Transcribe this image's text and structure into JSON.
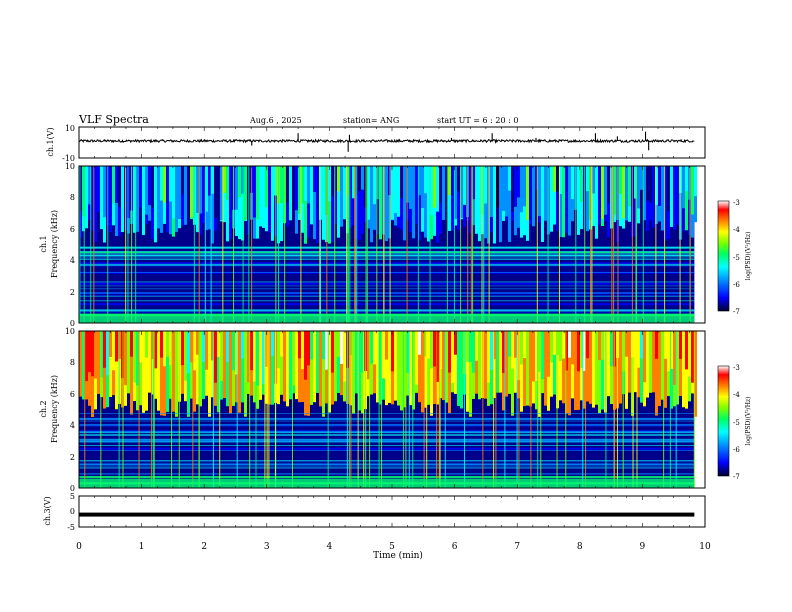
{
  "header": {
    "title": "VLF Spectra",
    "date": "Aug.6  , 2025",
    "station": "station= ANG",
    "start": "start  UT  =   6  : 20 : 0"
  },
  "chart_data": [
    {
      "id": "ch1-waveform",
      "type": "line",
      "ylabel": "ch.1(V)",
      "ylim": [
        -10,
        10
      ],
      "yticks": [
        "10",
        "-10"
      ],
      "baseline": 1,
      "spikes": [
        {
          "x": 2.76,
          "y": -2
        },
        {
          "x": 3.5,
          "y": 6
        },
        {
          "x": 4.3,
          "y": -6
        },
        {
          "x": 4.32,
          "y": 5
        },
        {
          "x": 5.95,
          "y": 3
        },
        {
          "x": 6.6,
          "y": 6
        },
        {
          "x": 7.3,
          "y": 3
        },
        {
          "x": 8.25,
          "y": 6
        },
        {
          "x": 8.6,
          "y": 4
        },
        {
          "x": 9.05,
          "y": 7
        },
        {
          "x": 9.1,
          "y": -5
        }
      ]
    },
    {
      "id": "ch1-spectrogram",
      "type": "heatmap",
      "ylabel": "ch.1",
      "ylabel2": "Frequency  (kHz)",
      "ylim": [
        0,
        10
      ],
      "yticks": [
        "0",
        "2",
        "4",
        "6",
        "8",
        "10"
      ],
      "colorbar": {
        "label": "log(PSD)(V²/Hz)",
        "range": [
          -7,
          -3
        ],
        "ticks": [
          "-3",
          "-4",
          "-5",
          "-6",
          "-7"
        ]
      },
      "background_level": -6.6,
      "bands": [
        {
          "f": 0.5,
          "level": -5.2
        },
        {
          "f": 0.8,
          "level": -5.5
        },
        {
          "f": 1.2,
          "level": -6.1
        },
        {
          "f": 1.9,
          "level": -6.2
        },
        {
          "f": 2.5,
          "level": -6.3
        },
        {
          "f": 3.2,
          "level": -6.2
        },
        {
          "f": 3.8,
          "level": -6.1
        },
        {
          "f": 4.3,
          "level": -5.4
        },
        {
          "f": 4.5,
          "level": -5.1
        },
        {
          "f": 4.8,
          "level": -5.6
        }
      ],
      "high_freq_activity": {
        "from": 5.5,
        "to": 10,
        "level": -5.8
      }
    },
    {
      "id": "ch2-spectrogram",
      "type": "heatmap",
      "ylabel": "ch.2",
      "ylabel2": "Frequency  (kHz)",
      "ylim": [
        0,
        10
      ],
      "yticks": [
        "0",
        "2",
        "4",
        "6",
        "8",
        "10"
      ],
      "colorbar": {
        "label": "log(PSD)(V²/Hz)",
        "range": [
          -7,
          -3
        ],
        "ticks": [
          "-3",
          "-4",
          "-5",
          "-6",
          "-7"
        ]
      },
      "background_level": -6.6,
      "bands": [
        {
          "f": 0.3,
          "level": -5.0
        },
        {
          "f": 0.7,
          "level": -5.2
        },
        {
          "f": 1.5,
          "level": -6.0
        },
        {
          "f": 2.5,
          "level": -6.1
        },
        {
          "f": 3.0,
          "level": -6.0
        },
        {
          "f": 3.6,
          "level": -5.9
        },
        {
          "f": 4.0,
          "level": -6.0
        },
        {
          "f": 4.4,
          "level": -5.9
        }
      ],
      "high_freq_activity": {
        "from": 5.0,
        "to": 10,
        "level": -4.3
      }
    },
    {
      "id": "ch3-waveform",
      "type": "line",
      "ylabel": "ch.3(V)",
      "ylim": [
        -5,
        5
      ],
      "yticks": [
        "5",
        "0",
        "-5"
      ],
      "baseline": -1
    }
  ],
  "x_axis": {
    "label": "Time  (min)",
    "range": [
      0,
      10
    ],
    "data_end": 9.83,
    "ticks": [
      "0",
      "1",
      "2",
      "3",
      "4",
      "5",
      "6",
      "7",
      "8",
      "9",
      "10"
    ]
  },
  "colormap": [
    "#00002e",
    "#00008b",
    "#0000ff",
    "#0090ff",
    "#00ffff",
    "#00ff70",
    "#80ff00",
    "#ffff00",
    "#ff8000",
    "#ff0000",
    "#ffffff"
  ]
}
